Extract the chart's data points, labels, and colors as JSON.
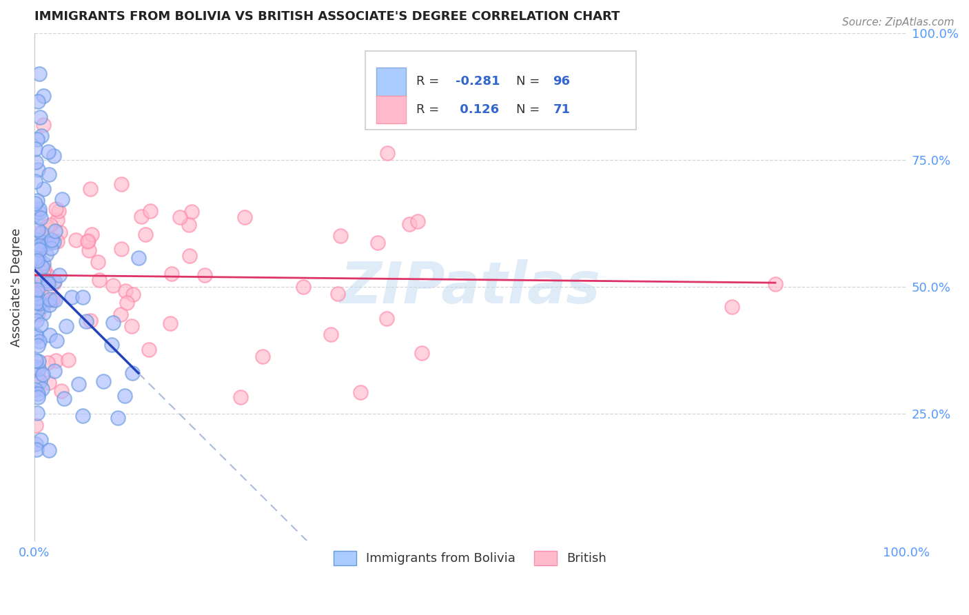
{
  "title": "IMMIGRANTS FROM BOLIVIA VS BRITISH ASSOCIATE'S DEGREE CORRELATION CHART",
  "source": "Source: ZipAtlas.com",
  "ylabel": "Associate's Degree",
  "watermark_text": "ZIPatlas",
  "background_color": "#ffffff",
  "blue_scatter_face": "#aabbff",
  "blue_scatter_edge": "#6699dd",
  "pink_scatter_face": "#ffbbcc",
  "pink_scatter_edge": "#ff88aa",
  "blue_line_color": "#2244bb",
  "blue_dash_color": "#aabbdd",
  "pink_line_color": "#dd3366",
  "tick_color": "#5599ff",
  "ylabel_color": "#333333",
  "title_color": "#222222",
  "source_color": "#888888",
  "grid_color": "#cccccc",
  "legend_edge_color": "#cccccc",
  "legend_r_label_color": "#333333",
  "legend_value_color": "#3366cc",
  "watermark_color": "#c0d8f0"
}
